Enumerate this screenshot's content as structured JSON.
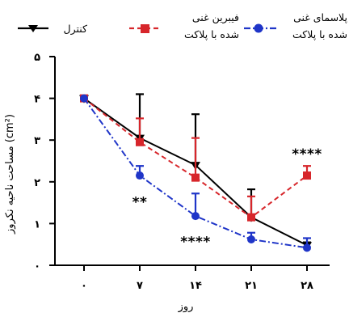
{
  "chart_data": {
    "type": "line",
    "xlabel": "روز",
    "ylabel": "مساحت ناحیه نکروز (cm²)",
    "x_tick_labels": [
      "۰",
      "۷",
      "۱۴",
      "۲۱",
      "۲۸"
    ],
    "y_tick_labels": [
      "۰",
      "۱",
      "۲",
      "۳",
      "۴",
      "۵"
    ],
    "x": [
      0,
      7,
      14,
      21,
      28
    ],
    "xlim": [
      0,
      28
    ],
    "ylim": [
      0,
      5
    ],
    "grid": false,
    "legend_position": "top",
    "series": [
      {
        "name": "کنترل",
        "color": "#000000",
        "line_style": "solid",
        "marker": "triangle-down",
        "values": [
          4.0,
          3.05,
          2.4,
          1.15,
          0.48
        ],
        "error_upper": [
          4.0,
          4.1,
          3.62,
          1.82,
          0.55
        ],
        "error_lower": [
          4.0,
          3.05,
          2.4,
          1.15,
          0.48
        ]
      },
      {
        "name_lines": [
          "فیبرین غنی",
          "شده با پلاکت"
        ],
        "color": "#d7262b",
        "line_style": "dashed",
        "marker": "square",
        "values": [
          4.0,
          2.95,
          2.1,
          1.15,
          2.15
        ],
        "error_upper": [
          4.0,
          3.52,
          3.05,
          1.65,
          2.38
        ],
        "error_lower": [
          4.0,
          2.95,
          2.1,
          1.15,
          2.15
        ]
      },
      {
        "name_lines": [
          "پلاسمای غنی",
          "شده با پلاکت"
        ],
        "color": "#1f35c8",
        "line_style": "dash-dot",
        "marker": "circle",
        "values": [
          4.0,
          2.15,
          1.18,
          0.62,
          0.42
        ],
        "error_upper": [
          4.0,
          2.38,
          1.72,
          0.78,
          0.65
        ],
        "error_lower": [
          4.0,
          2.15,
          1.18,
          0.62,
          0.42
        ]
      }
    ],
    "annotations": [
      {
        "text": "**",
        "x": 7,
        "y": 1.6
      },
      {
        "text": "****",
        "x": 14,
        "y": 0.65
      },
      {
        "text": "****",
        "x": 28,
        "y": 2.75
      }
    ]
  }
}
